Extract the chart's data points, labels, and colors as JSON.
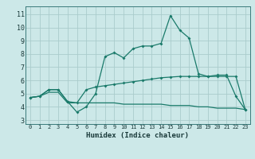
{
  "xlabel": "Humidex (Indice chaleur)",
  "background_color": "#cce8e8",
  "grid_color": "#aacccc",
  "line_color": "#1a7a6a",
  "xlim": [
    -0.5,
    23.5
  ],
  "ylim": [
    2.7,
    11.6
  ],
  "yticks": [
    3,
    4,
    5,
    6,
    7,
    8,
    9,
    10,
    11
  ],
  "xticks": [
    0,
    1,
    2,
    3,
    4,
    5,
    6,
    7,
    8,
    9,
    10,
    11,
    12,
    13,
    14,
    15,
    16,
    17,
    18,
    19,
    20,
    21,
    22,
    23
  ],
  "series1_x": [
    0,
    1,
    2,
    3,
    4,
    5,
    6,
    7,
    8,
    9,
    10,
    11,
    12,
    13,
    14,
    15,
    16,
    17,
    18,
    19,
    20,
    21,
    22,
    23
  ],
  "series1_y": [
    4.7,
    4.8,
    5.3,
    5.3,
    4.4,
    3.6,
    4.0,
    5.0,
    7.8,
    8.1,
    7.7,
    8.4,
    8.6,
    8.6,
    8.8,
    10.9,
    9.8,
    9.2,
    6.5,
    6.3,
    6.4,
    6.4,
    4.8,
    3.8
  ],
  "series2_x": [
    0,
    1,
    2,
    3,
    4,
    5,
    6,
    7,
    8,
    9,
    10,
    11,
    12,
    13,
    14,
    15,
    16,
    17,
    18,
    19,
    20,
    21,
    22,
    23
  ],
  "series2_y": [
    4.7,
    4.8,
    5.3,
    5.3,
    4.4,
    4.3,
    5.3,
    5.5,
    5.6,
    5.7,
    5.8,
    5.9,
    6.0,
    6.1,
    6.2,
    6.25,
    6.3,
    6.3,
    6.3,
    6.3,
    6.3,
    6.3,
    6.3,
    3.8
  ],
  "series3_x": [
    0,
    1,
    2,
    3,
    4,
    5,
    6,
    7,
    8,
    9,
    10,
    11,
    12,
    13,
    14,
    15,
    16,
    17,
    18,
    19,
    20,
    21,
    22,
    23
  ],
  "series3_y": [
    4.7,
    4.8,
    5.1,
    5.1,
    4.3,
    4.3,
    4.3,
    4.3,
    4.3,
    4.3,
    4.2,
    4.2,
    4.2,
    4.2,
    4.2,
    4.1,
    4.1,
    4.1,
    4.0,
    4.0,
    3.9,
    3.9,
    3.9,
    3.8
  ],
  "xlabel_fontsize": 6.5,
  "xtick_fontsize": 5.0,
  "ytick_fontsize": 6.0
}
